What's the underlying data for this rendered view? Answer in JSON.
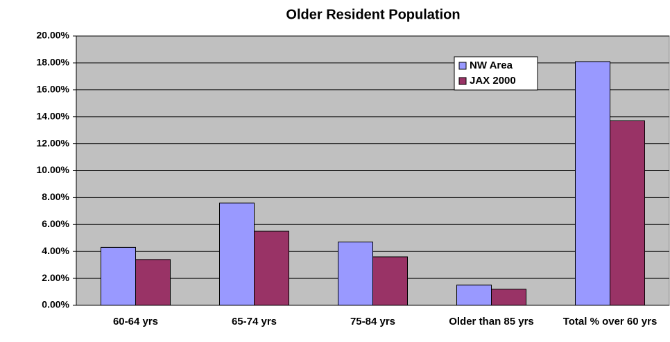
{
  "chart_data": {
    "type": "bar",
    "title": "Older Resident Population",
    "categories": [
      "60-64 yrs",
      "65-74 yrs",
      "75-84 yrs",
      "Older than 85 yrs",
      "Total % over 60 yrs"
    ],
    "series": [
      {
        "name": "NW Area",
        "color": "#9999ff",
        "values": [
          4.3,
          7.6,
          4.7,
          1.5,
          18.1
        ]
      },
      {
        "name": "JAX 2000",
        "color": "#993366",
        "values": [
          3.4,
          5.5,
          3.6,
          1.2,
          13.7
        ]
      }
    ],
    "ylim": [
      0,
      20
    ],
    "yticks": [
      {
        "value": 0,
        "label": "0.00%"
      },
      {
        "value": 2,
        "label": "2.00%"
      },
      {
        "value": 4,
        "label": "4.00%"
      },
      {
        "value": 6,
        "label": "6.00%"
      },
      {
        "value": 8,
        "label": "8.00%"
      },
      {
        "value": 10,
        "label": "10.00%"
      },
      {
        "value": 12,
        "label": "12.00%"
      },
      {
        "value": 14,
        "label": "14.00%"
      },
      {
        "value": 16,
        "label": "16.00%"
      },
      {
        "value": 18,
        "label": "18.00%"
      },
      {
        "value": 20,
        "label": "20.00%"
      }
    ],
    "grid": true,
    "legend": "upper right"
  }
}
